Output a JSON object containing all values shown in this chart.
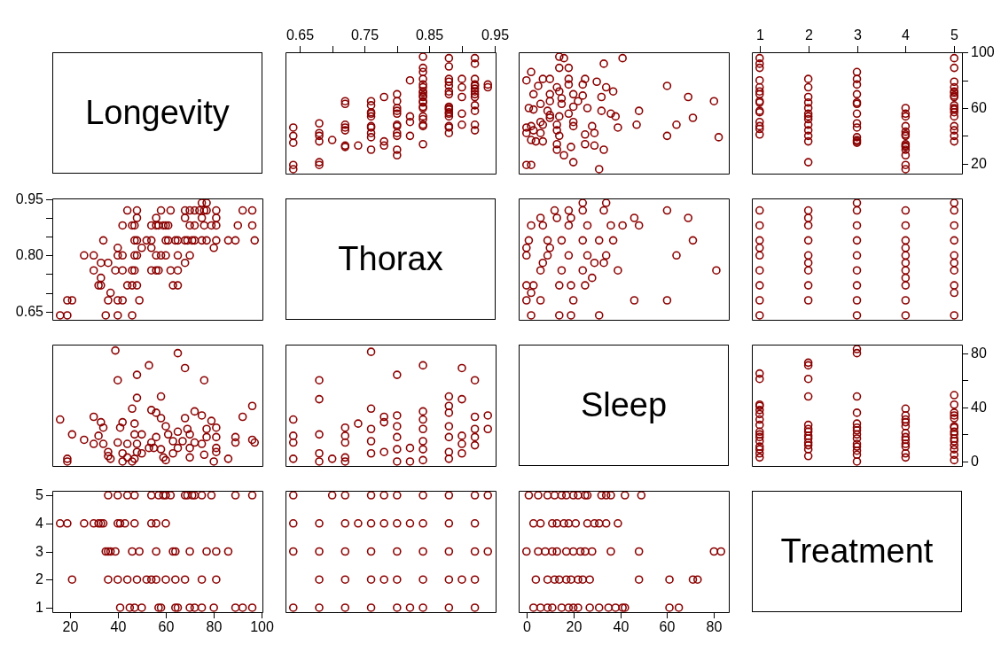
{
  "chart_data": [
    {
      "type": "other",
      "title": "Longevity"
    },
    {
      "type": "scatter",
      "color": "#8b0000",
      "marker": "circle",
      "xlim": [
        0.628,
        0.952
      ],
      "xticks": [
        0.65,
        {
          "value": 0.7,
          "label": null
        },
        0.75,
        {
          "value": 0.8,
          "label": null
        },
        0.85,
        {
          "value": 0.9,
          "label": null
        },
        0.95
      ],
      "ylim": [
        12.76,
        100.24
      ],
      "tick_labels": "x",
      "x": [
        0.94,
        0.94,
        0.92,
        0.92,
        0.92,
        0.92,
        0.92,
        0.92,
        0.92,
        0.92,
        0.92,
        0.92,
        0.92,
        0.92,
        0.92,
        0.9,
        0.9,
        0.9,
        0.9,
        0.9,
        0.88,
        0.88,
        0.88,
        0.88,
        0.88,
        0.88,
        0.88,
        0.88,
        0.88,
        0.88,
        0.88,
        0.88,
        0.88,
        0.88,
        0.88,
        0.88,
        0.84,
        0.84,
        0.84,
        0.84,
        0.84,
        0.84,
        0.84,
        0.84,
        0.84,
        0.84,
        0.84,
        0.84,
        0.84,
        0.84,
        0.84,
        0.84,
        0.84,
        0.84,
        0.84,
        0.82,
        0.82,
        0.82,
        0.82,
        0.8,
        0.8,
        0.8,
        0.8,
        0.8,
        0.8,
        0.8,
        0.8,
        0.8,
        0.8,
        0.8,
        0.78,
        0.78,
        0.78,
        0.76,
        0.76,
        0.76,
        0.76,
        0.76,
        0.76,
        0.76,
        0.76,
        0.76,
        0.76,
        0.74,
        0.72,
        0.72,
        0.72,
        0.72,
        0.72,
        0.72,
        0.72,
        0.7,
        0.68,
        0.68,
        0.68,
        0.68,
        0.68,
        0.68,
        0.64,
        0.64,
        0.64,
        0.64,
        0.64
      ],
      "values": [
        75,
        77,
        44,
        48,
        58,
        62,
        68,
        70,
        72,
        74,
        76,
        77,
        81,
        92,
        96,
        48,
        56,
        68,
        75,
        81,
        42,
        46,
        47,
        54,
        56,
        57,
        59,
        60,
        61,
        70,
        72,
        76,
        79,
        81,
        90,
        96,
        34,
        47,
        48,
        52,
        54,
        60,
        61,
        64,
        65,
        68,
        69,
        71,
        72,
        75,
        77,
        81,
        86,
        89,
        97,
        40,
        50,
        54,
        80,
        26,
        30,
        40,
        42,
        47,
        48,
        56,
        58,
        60,
        65,
        70,
        33,
        36,
        68,
        30,
        39,
        42,
        46,
        47,
        54,
        56,
        57,
        62,
        65,
        33,
        32,
        33,
        44,
        46,
        48,
        63,
        65,
        37,
        19,
        21,
        36,
        40,
        42,
        49,
        16,
        19,
        35,
        40,
        46
      ]
    },
    {
      "type": "scatter",
      "color": "#8b0000",
      "marker": "circle",
      "xlim": [
        -3.32,
        86.32
      ],
      "ylim": [
        12.76,
        100.24
      ],
      "tick_labels": false,
      "x": [
        82,
        80,
        71,
        69,
        60,
        64,
        60,
        47,
        48,
        39,
        31,
        33,
        38,
        36,
        32,
        32,
        37,
        34,
        30,
        33,
        41,
        29,
        25,
        29,
        28,
        25,
        20,
        16,
        19,
        13,
        13,
        14,
        13,
        20,
        13,
        7,
        6,
        7,
        2,
        0,
        0,
        2,
        0,
        14,
        18,
        26,
        20,
        15,
        22,
        15,
        24,
        20,
        14,
        13,
        24,
        18,
        25,
        18,
        10,
        7,
        2,
        18,
        14,
        16,
        14,
        10,
        9,
        3,
        1,
        6,
        10,
        3,
        10,
        5,
        0,
        3,
        2,
        10,
        20,
        4,
        6
      ],
      "values": [
        39,
        65,
        53,
        68,
        40,
        48,
        76,
        48,
        58,
        46,
        16,
        30,
        54,
        56,
        58,
        68,
        72,
        75,
        79,
        92,
        96,
        33,
        34,
        42,
        47,
        41,
        21,
        26,
        32,
        30,
        34,
        40,
        44,
        47,
        48,
        48,
        50,
        36,
        37,
        42,
        46,
        19,
        19,
        54,
        56,
        60,
        61,
        63,
        65,
        67,
        69,
        70,
        72,
        75,
        77,
        77,
        81,
        81,
        81,
        81,
        86,
        89,
        89,
        96,
        97,
        55,
        58,
        59,
        60,
        63,
        65,
        70,
        70,
        76,
        80,
        44,
        47,
        53,
        50,
        36,
        42
      ]
    },
    {
      "type": "scatter",
      "color": "#8b0000",
      "marker": "circle",
      "xlim": [
        0.84,
        5.16
      ],
      "xticks": [
        1,
        2,
        3,
        4,
        5
      ],
      "ylim": [
        12.76,
        100.24
      ],
      "yticks": [
        20,
        {
          "value": 40,
          "label": null
        },
        60,
        {
          "value": 80,
          "label": null
        },
        100
      ],
      "x": [
        5,
        5,
        5,
        5,
        5,
        5,
        5,
        5,
        5,
        5,
        5,
        5,
        5,
        5,
        5,
        5,
        5,
        4,
        4,
        4,
        4,
        4,
        4,
        4,
        4,
        4,
        4,
        4,
        4,
        4,
        4,
        3,
        3,
        3,
        3,
        3,
        3,
        3,
        3,
        3,
        3,
        3,
        3,
        3,
        2,
        2,
        2,
        2,
        2,
        2,
        2,
        2,
        2,
        2,
        2,
        2,
        2,
        1,
        1,
        1,
        1,
        1,
        1,
        1,
        1,
        1,
        1,
        1,
        1,
        1,
        1,
        1
      ],
      "values": [
        36,
        40,
        44,
        47,
        54,
        57,
        59,
        60,
        62,
        68,
        69,
        71,
        72,
        75,
        79,
        89,
        96,
        16,
        19,
        26,
        30,
        32,
        33,
        34,
        40,
        41,
        43,
        47,
        54,
        56,
        60,
        35,
        36,
        37,
        39,
        46,
        49,
        56,
        63,
        64,
        70,
        77,
        81,
        86,
        21,
        36,
        40,
        44,
        48,
        52,
        54,
        56,
        60,
        64,
        68,
        75,
        81,
        41,
        45,
        47,
        50,
        57,
        58,
        64,
        65,
        70,
        72,
        75,
        80,
        89,
        92,
        96
      ]
    },
    {
      "type": "scatter",
      "color": "#8b0000",
      "marker": "circle",
      "xlim": [
        12.76,
        100.24
      ],
      "ylim": [
        0.628,
        0.952
      ],
      "yticks": [
        0.65,
        {
          "value": 0.7,
          "label": null
        },
        {
          "value": 0.75,
          "label": null
        },
        {
          "value": 0.8,
          "label": "0.80"
        },
        {
          "value": 0.85,
          "label": null
        },
        {
          "value": 0.9,
          "label": null
        },
        0.95
      ],
      "tick_labels": "y",
      "x": [
        75,
        77,
        44,
        48,
        58,
        62,
        68,
        70,
        72,
        74,
        76,
        77,
        81,
        92,
        96,
        48,
        56,
        68,
        75,
        81,
        42,
        46,
        47,
        54,
        56,
        57,
        59,
        60,
        61,
        70,
        72,
        76,
        79,
        81,
        90,
        96,
        34,
        47,
        48,
        52,
        54,
        60,
        61,
        64,
        65,
        68,
        69,
        71,
        72,
        75,
        77,
        81,
        86,
        89,
        97,
        40,
        50,
        54,
        80,
        26,
        30,
        40,
        42,
        47,
        48,
        56,
        58,
        60,
        65,
        70,
        33,
        36,
        68,
        30,
        39,
        42,
        46,
        47,
        54,
        56,
        57,
        62,
        65,
        33,
        32,
        33,
        44,
        46,
        48,
        63,
        65,
        37,
        19,
        21,
        36,
        40,
        42,
        49,
        16,
        19,
        35,
        40,
        46
      ],
      "values": [
        0.94,
        0.94,
        0.92,
        0.92,
        0.92,
        0.92,
        0.92,
        0.92,
        0.92,
        0.92,
        0.92,
        0.92,
        0.92,
        0.92,
        0.92,
        0.9,
        0.9,
        0.9,
        0.9,
        0.9,
        0.88,
        0.88,
        0.88,
        0.88,
        0.88,
        0.88,
        0.88,
        0.88,
        0.88,
        0.88,
        0.88,
        0.88,
        0.88,
        0.88,
        0.88,
        0.88,
        0.84,
        0.84,
        0.84,
        0.84,
        0.84,
        0.84,
        0.84,
        0.84,
        0.84,
        0.84,
        0.84,
        0.84,
        0.84,
        0.84,
        0.84,
        0.84,
        0.84,
        0.84,
        0.84,
        0.82,
        0.82,
        0.82,
        0.82,
        0.8,
        0.8,
        0.8,
        0.8,
        0.8,
        0.8,
        0.8,
        0.8,
        0.8,
        0.8,
        0.8,
        0.78,
        0.78,
        0.78,
        0.76,
        0.76,
        0.76,
        0.76,
        0.76,
        0.76,
        0.76,
        0.76,
        0.76,
        0.76,
        0.74,
        0.72,
        0.72,
        0.72,
        0.72,
        0.72,
        0.72,
        0.72,
        0.7,
        0.68,
        0.68,
        0.68,
        0.68,
        0.68,
        0.68,
        0.64,
        0.64,
        0.64,
        0.64,
        0.64
      ]
    },
    {
      "type": "other",
      "title": "Thorax"
    },
    {
      "type": "scatter",
      "color": "#8b0000",
      "marker": "circle",
      "xlim": [
        -3.32,
        86.32
      ],
      "ylim": [
        0.628,
        0.952
      ],
      "tick_labels": false,
      "x": [
        31,
        19,
        14,
        2,
        60,
        46,
        20,
        6,
        0,
        2,
        25,
        19,
        14,
        3,
        0,
        28,
        81,
        39,
        24,
        15,
        6,
        33,
        29,
        7,
        64,
        34,
        26,
        18,
        9,
        0,
        10,
        0,
        71,
        37,
        31,
        24,
        15,
        9,
        1,
        48,
        41,
        36,
        26,
        18,
        7,
        2,
        69,
        46,
        19,
        13,
        6,
        60,
        33,
        24,
        18,
        12,
        34,
        24
      ],
      "values": [
        0.64,
        0.64,
        0.64,
        0.64,
        0.68,
        0.68,
        0.68,
        0.68,
        0.68,
        0.7,
        0.72,
        0.72,
        0.72,
        0.72,
        0.72,
        0.74,
        0.76,
        0.76,
        0.76,
        0.76,
        0.76,
        0.78,
        0.78,
        0.78,
        0.8,
        0.8,
        0.8,
        0.8,
        0.8,
        0.8,
        0.82,
        0.82,
        0.84,
        0.84,
        0.84,
        0.84,
        0.84,
        0.84,
        0.84,
        0.88,
        0.88,
        0.88,
        0.88,
        0.88,
        0.88,
        0.88,
        0.9,
        0.9,
        0.9,
        0.9,
        0.9,
        0.92,
        0.92,
        0.92,
        0.92,
        0.92,
        0.94,
        0.94
      ]
    },
    {
      "type": "scatter",
      "color": "#8b0000",
      "marker": "circle",
      "xlim": [
        0.84,
        5.16
      ],
      "ylim": [
        0.628,
        0.952
      ],
      "tick_labels": false,
      "x": [
        5,
        5,
        5,
        5,
        5,
        5,
        5,
        5,
        5,
        5,
        4,
        4,
        4,
        4,
        4,
        4,
        4,
        4,
        4,
        4,
        4,
        3,
        3,
        3,
        3,
        3,
        3,
        3,
        3,
        3,
        2,
        2,
        2,
        2,
        2,
        2,
        2,
        2,
        2,
        1,
        1,
        1,
        1,
        1,
        1,
        1,
        1,
        1
      ],
      "values": [
        0.64,
        0.7,
        0.72,
        0.76,
        0.78,
        0.8,
        0.84,
        0.88,
        0.92,
        0.94,
        0.64,
        0.68,
        0.72,
        0.74,
        0.76,
        0.78,
        0.8,
        0.82,
        0.84,
        0.88,
        0.92,
        0.64,
        0.68,
        0.72,
        0.76,
        0.8,
        0.84,
        0.88,
        0.92,
        0.94,
        0.68,
        0.72,
        0.76,
        0.78,
        0.8,
        0.84,
        0.88,
        0.9,
        0.92,
        0.64,
        0.68,
        0.72,
        0.76,
        0.8,
        0.82,
        0.84,
        0.88,
        0.92
      ]
    },
    {
      "type": "scatter",
      "color": "#8b0000",
      "marker": "circle",
      "xlim": [
        12.76,
        100.24
      ],
      "ylim": [
        -3.32,
        86.32
      ],
      "tick_labels": false,
      "x": [
        39,
        65,
        53,
        68,
        40,
        48,
        76,
        48,
        58,
        46,
        16,
        30,
        54,
        56,
        58,
        68,
        72,
        75,
        79,
        92,
        96,
        33,
        34,
        42,
        47,
        41,
        21,
        26,
        32,
        30,
        34,
        40,
        44,
        47,
        48,
        48,
        50,
        36,
        37,
        42,
        46,
        19,
        19,
        54,
        56,
        60,
        61,
        63,
        65,
        67,
        69,
        70,
        72,
        75,
        77,
        77,
        81,
        81,
        81,
        81,
        86,
        89,
        89,
        96,
        97,
        55,
        58,
        59,
        60,
        63,
        65,
        70,
        70,
        76,
        80,
        44,
        47,
        53,
        50,
        36,
        42
      ],
      "values": [
        82,
        80,
        71,
        69,
        60,
        64,
        60,
        47,
        48,
        39,
        31,
        33,
        38,
        36,
        32,
        32,
        37,
        34,
        30,
        33,
        41,
        29,
        25,
        29,
        28,
        25,
        20,
        16,
        19,
        13,
        13,
        14,
        13,
        20,
        13,
        7,
        6,
        7,
        2,
        0,
        0,
        2,
        0,
        14,
        18,
        26,
        20,
        15,
        22,
        15,
        24,
        20,
        14,
        13,
        24,
        18,
        25,
        18,
        10,
        7,
        2,
        18,
        14,
        16,
        14,
        10,
        9,
        3,
        1,
        6,
        10,
        3,
        10,
        5,
        0,
        3,
        2,
        10,
        20,
        4,
        6
      ]
    },
    {
      "type": "scatter",
      "color": "#8b0000",
      "marker": "circle",
      "xlim": [
        0.628,
        0.952
      ],
      "ylim": [
        -3.32,
        86.32
      ],
      "tick_labels": false,
      "x": [
        0.64,
        0.64,
        0.64,
        0.64,
        0.68,
        0.68,
        0.68,
        0.68,
        0.68,
        0.7,
        0.72,
        0.72,
        0.72,
        0.72,
        0.72,
        0.74,
        0.76,
        0.76,
        0.76,
        0.76,
        0.76,
        0.78,
        0.78,
        0.78,
        0.8,
        0.8,
        0.8,
        0.8,
        0.8,
        0.8,
        0.82,
        0.82,
        0.84,
        0.84,
        0.84,
        0.84,
        0.84,
        0.84,
        0.84,
        0.88,
        0.88,
        0.88,
        0.88,
        0.88,
        0.88,
        0.88,
        0.9,
        0.9,
        0.9,
        0.9,
        0.9,
        0.92,
        0.92,
        0.92,
        0.92,
        0.92,
        0.94,
        0.94
      ],
      "values": [
        31,
        19,
        14,
        2,
        60,
        46,
        20,
        6,
        0,
        2,
        25,
        19,
        14,
        3,
        0,
        28,
        81,
        39,
        24,
        15,
        6,
        33,
        29,
        7,
        64,
        34,
        26,
        18,
        9,
        0,
        10,
        0,
        71,
        37,
        31,
        24,
        15,
        9,
        1,
        48,
        41,
        36,
        26,
        18,
        7,
        2,
        69,
        46,
        19,
        13,
        6,
        60,
        33,
        24,
        18,
        12,
        34,
        24
      ]
    },
    {
      "type": "other",
      "title": "Sleep"
    },
    {
      "type": "scatter",
      "color": "#8b0000",
      "marker": "circle",
      "xlim": [
        0.84,
        5.16
      ],
      "ylim": [
        -3.32,
        86.32
      ],
      "yticks": [
        0,
        {
          "value": 20,
          "label": null
        },
        40,
        {
          "value": 60,
          "label": null
        },
        80
      ],
      "tick_labels": "y",
      "x": [
        5,
        5,
        5,
        5,
        5,
        5,
        5,
        5,
        5,
        5,
        5,
        5,
        5,
        5,
        5,
        4,
        4,
        4,
        4,
        4,
        4,
        4,
        4,
        4,
        4,
        4,
        4,
        3,
        3,
        3,
        3,
        3,
        3,
        3,
        3,
        3,
        3,
        3,
        3,
        3,
        3,
        2,
        2,
        2,
        2,
        2,
        2,
        2,
        2,
        2,
        2,
        2,
        2,
        2,
        1,
        1,
        1,
        1,
        1,
        1,
        1,
        1,
        1,
        1,
        1,
        1,
        1,
        1,
        1,
        1
      ],
      "values": [
        1,
        5,
        9,
        12,
        15,
        17,
        20,
        22,
        25,
        26,
        32,
        34,
        36,
        42,
        49,
        3,
        6,
        11,
        13,
        16,
        18,
        21,
        26,
        29,
        31,
        34,
        39,
        0,
        5,
        8,
        11,
        13,
        17,
        20,
        23,
        25,
        28,
        36,
        48,
        80,
        83,
        4,
        9,
        12,
        14,
        17,
        19,
        22,
        24,
        27,
        48,
        61,
        71,
        73,
        3,
        6,
        9,
        11,
        15,
        18,
        20,
        22,
        27,
        31,
        35,
        38,
        41,
        42,
        61,
        65
      ]
    },
    {
      "type": "scatter",
      "color": "#8b0000",
      "marker": "circle",
      "xlim": [
        12.76,
        100.24
      ],
      "xticks": [
        20,
        40,
        60,
        80,
        100
      ],
      "ylim": [
        0.84,
        5.16
      ],
      "yticks": [
        1,
        2,
        3,
        4,
        5
      ],
      "x": [
        36,
        40,
        44,
        47,
        54,
        57,
        59,
        60,
        62,
        68,
        69,
        71,
        72,
        75,
        79,
        89,
        96,
        16,
        19,
        26,
        30,
        32,
        33,
        34,
        40,
        41,
        43,
        47,
        54,
        56,
        60,
        35,
        36,
        37,
        39,
        46,
        49,
        56,
        63,
        64,
        70,
        77,
        81,
        86,
        21,
        36,
        40,
        44,
        48,
        52,
        54,
        56,
        60,
        64,
        68,
        75,
        81,
        41,
        45,
        47,
        50,
        57,
        58,
        64,
        65,
        70,
        72,
        75,
        80,
        89,
        92,
        96
      ],
      "values": [
        5,
        5,
        5,
        5,
        5,
        5,
        5,
        5,
        5,
        5,
        5,
        5,
        5,
        5,
        5,
        5,
        5,
        4,
        4,
        4,
        4,
        4,
        4,
        4,
        4,
        4,
        4,
        4,
        4,
        4,
        4,
        3,
        3,
        3,
        3,
        3,
        3,
        3,
        3,
        3,
        3,
        3,
        3,
        3,
        2,
        2,
        2,
        2,
        2,
        2,
        2,
        2,
        2,
        2,
        2,
        2,
        2,
        1,
        1,
        1,
        1,
        1,
        1,
        1,
        1,
        1,
        1,
        1,
        1,
        1,
        1,
        1
      ]
    },
    {
      "type": "scatter",
      "color": "#8b0000",
      "marker": "circle",
      "xlim": [
        0.628,
        0.952
      ],
      "ylim": [
        0.84,
        5.16
      ],
      "tick_labels": false,
      "x": [
        0.64,
        0.7,
        0.72,
        0.76,
        0.78,
        0.8,
        0.84,
        0.88,
        0.92,
        0.94,
        0.64,
        0.68,
        0.72,
        0.74,
        0.76,
        0.78,
        0.8,
        0.82,
        0.84,
        0.88,
        0.92,
        0.64,
        0.68,
        0.72,
        0.76,
        0.8,
        0.84,
        0.88,
        0.92,
        0.94,
        0.68,
        0.72,
        0.76,
        0.78,
        0.8,
        0.84,
        0.88,
        0.9,
        0.92,
        0.64,
        0.68,
        0.72,
        0.76,
        0.8,
        0.82,
        0.84,
        0.88,
        0.92
      ],
      "values": [
        5,
        5,
        5,
        5,
        5,
        5,
        5,
        5,
        5,
        5,
        4,
        4,
        4,
        4,
        4,
        4,
        4,
        4,
        4,
        4,
        4,
        3,
        3,
        3,
        3,
        3,
        3,
        3,
        3,
        3,
        2,
        2,
        2,
        2,
        2,
        2,
        2,
        2,
        2,
        1,
        1,
        1,
        1,
        1,
        1,
        1,
        1,
        1
      ]
    },
    {
      "type": "scatter",
      "color": "#8b0000",
      "marker": "circle",
      "xlim": [
        -3.32,
        86.32
      ],
      "xticks": [
        0,
        20,
        40,
        60,
        80
      ],
      "ylim": [
        0.84,
        5.16
      ],
      "tick_labels": "x",
      "x": [
        1,
        5,
        9,
        12,
        15,
        17,
        20,
        22,
        25,
        26,
        32,
        34,
        36,
        42,
        49,
        3,
        6,
        11,
        13,
        16,
        18,
        21,
        26,
        29,
        31,
        34,
        39,
        0,
        5,
        8,
        11,
        13,
        17,
        20,
        23,
        25,
        28,
        36,
        48,
        80,
        83,
        4,
        9,
        12,
        14,
        17,
        19,
        22,
        24,
        27,
        48,
        61,
        71,
        73,
        3,
        6,
        9,
        11,
        15,
        18,
        20,
        22,
        27,
        31,
        35,
        38,
        41,
        42,
        61,
        65
      ],
      "values": [
        5,
        5,
        5,
        5,
        5,
        5,
        5,
        5,
        5,
        5,
        5,
        5,
        5,
        5,
        5,
        4,
        4,
        4,
        4,
        4,
        4,
        4,
        4,
        4,
        4,
        4,
        4,
        3,
        3,
        3,
        3,
        3,
        3,
        3,
        3,
        3,
        3,
        3,
        3,
        3,
        3,
        2,
        2,
        2,
        2,
        2,
        2,
        2,
        2,
        2,
        2,
        2,
        2,
        2,
        1,
        1,
        1,
        1,
        1,
        1,
        1,
        1,
        1,
        1,
        1,
        1,
        1,
        1,
        1,
        1
      ]
    },
    {
      "type": "other",
      "title": "Treatment"
    }
  ]
}
